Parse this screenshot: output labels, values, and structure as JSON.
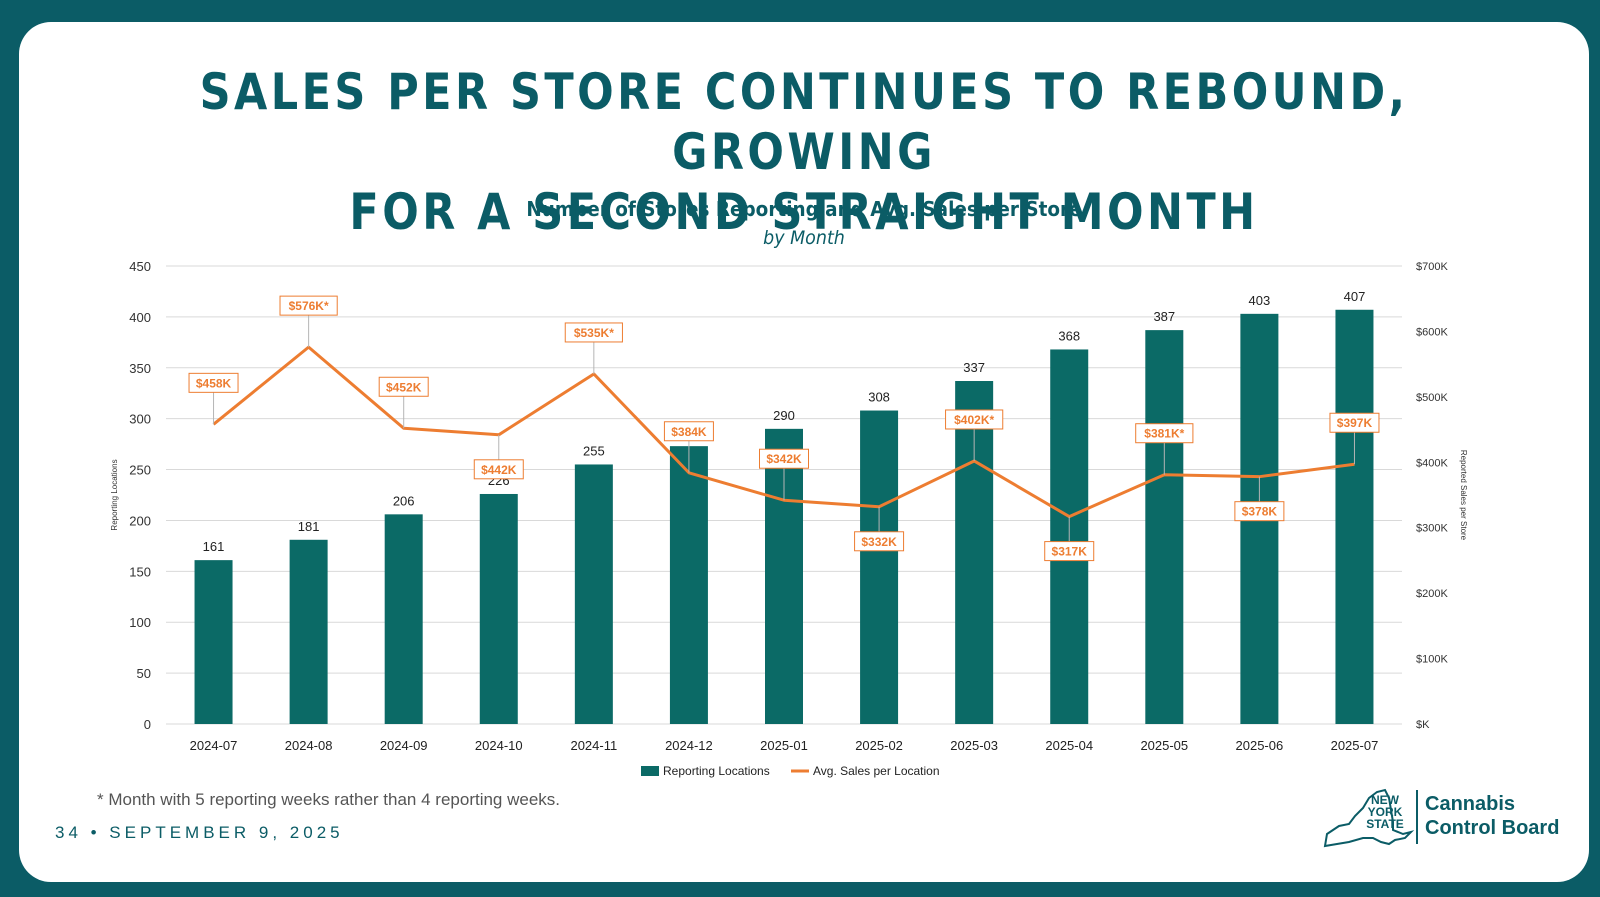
{
  "slide": {
    "title_line1": "SALES PER STORE CONTINUES TO REBOUND, GROWING",
    "title_line2": "FOR A SECOND STRAIGHT MONTH",
    "footnote": "* Month with 5 reporting weeks rather than 4 reporting weeks.",
    "footer": "34 • SEPTEMBER 9, 2025"
  },
  "logo": {
    "state_line1": "NEW",
    "state_line2": "YORK",
    "state_line3": "STATE",
    "org_line1": "Cannabis",
    "org_line2": "Control Board"
  },
  "colors": {
    "teal": "#0b6a66",
    "orange": "#ed7d31",
    "brand": "#0b5c66"
  },
  "chart_data": {
    "type": "bar",
    "title": "Number of Stores Reporting and Avg. Sales per Store",
    "subtitle": "by Month",
    "categories": [
      "2024-07",
      "2024-08",
      "2024-09",
      "2024-10",
      "2024-11",
      "2024-12",
      "2025-01",
      "2025-02",
      "2025-03",
      "2025-04",
      "2025-05",
      "2025-06",
      "2025-07"
    ],
    "series": [
      {
        "name": "Reporting Locations",
        "type": "bar",
        "axis": "left",
        "values": [
          161,
          181,
          206,
          226,
          255,
          273,
          290,
          308,
          337,
          368,
          387,
          403,
          407
        ],
        "labels": [
          "161",
          "181",
          "206",
          "226",
          "255",
          "273",
          "290",
          "308",
          "337",
          "368",
          "387",
          "403",
          "407"
        ]
      },
      {
        "name": "Avg. Sales per Location",
        "type": "line",
        "axis": "right",
        "values": [
          458,
          576,
          452,
          442,
          535,
          384,
          342,
          332,
          402,
          317,
          381,
          378,
          397
        ],
        "labels": [
          "$458K",
          "$576K*",
          "$452K",
          "$442K",
          "$535K*",
          "$384K",
          "$342K",
          "$332K",
          "$402K*",
          "$317K",
          "$381K*",
          "$378K",
          "$397K"
        ]
      }
    ],
    "ylabel": "Reporting Locations",
    "y2label": "Reported Sales per Store",
    "ylim": [
      0,
      450
    ],
    "y2lim": [
      0,
      700
    ],
    "yticks": [
      "0",
      "50",
      "100",
      "150",
      "200",
      "250",
      "300",
      "350",
      "400",
      "450"
    ],
    "y2ticks": [
      "$K",
      "$100K",
      "$200K",
      "$300K",
      "$400K",
      "$500K",
      "$600K",
      "$700K"
    ],
    "grid": true,
    "legend": "bottom"
  }
}
